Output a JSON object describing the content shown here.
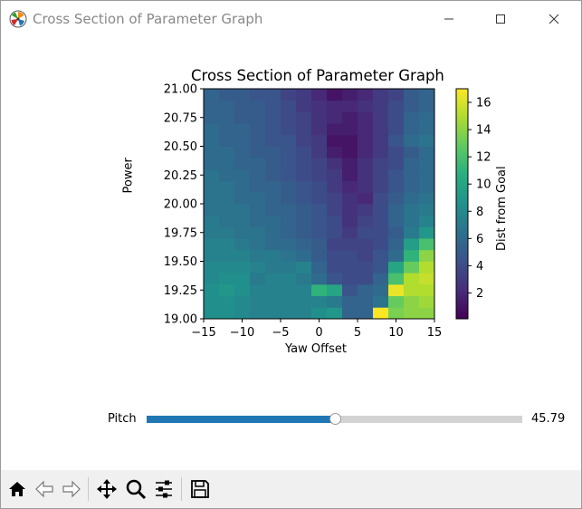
{
  "window": {
    "title": "Cross Section of Parameter Graph",
    "icons": {
      "app": "matplotlib-logo-icon",
      "minimize": "minimize-icon",
      "maximize": "maximize-icon",
      "close": "close-icon"
    }
  },
  "chart_data": {
    "type": "heatmap",
    "title": "Cross Section of Parameter Graph",
    "xlabel": "Yaw Offset",
    "ylabel": "Power",
    "xlim": [
      -15,
      15
    ],
    "ylim": [
      19.0,
      21.0
    ],
    "x_ticks": [
      "−15",
      "−10",
      "−5",
      "0",
      "5",
      "10",
      "15"
    ],
    "y_ticks": [
      "19.00",
      "19.25",
      "19.50",
      "19.75",
      "20.00",
      "20.25",
      "20.50",
      "20.75",
      "21.00"
    ],
    "colormap": "viridis",
    "colorbar": {
      "label": "Dist from Goal",
      "ticks": [
        "2",
        "4",
        "6",
        "8",
        "10",
        "12",
        "14",
        "16"
      ],
      "vmin": 0.1,
      "vmax": 17
    },
    "x_centers": [
      -14,
      -12,
      -10,
      -8,
      -6,
      -4,
      -2,
      0,
      2,
      4,
      6,
      8,
      10,
      12,
      14
    ],
    "y_centers": [
      19.05,
      19.15,
      19.25,
      19.35,
      19.45,
      19.55,
      19.65,
      19.75,
      19.85,
      19.95,
      20.05,
      20.15,
      20.25,
      20.35,
      20.45,
      20.55,
      20.65,
      20.75,
      20.85,
      20.95
    ],
    "grid_note": "z[row][col]; row 0 = Power 19.05 (bottom)",
    "z": [
      [
        8.5,
        8.5,
        8,
        7.5,
        7.5,
        7.5,
        7.5,
        8.5,
        9,
        5.5,
        5.5,
        17,
        13.5,
        14,
        14
      ],
      [
        8.5,
        8.5,
        8,
        7.5,
        7.5,
        7.5,
        7.5,
        7.5,
        7,
        5.5,
        5.5,
        6.5,
        13,
        14,
        14.5
      ],
      [
        8.5,
        9,
        8.5,
        7.5,
        7.5,
        7.5,
        7.5,
        11,
        10,
        4.5,
        5.5,
        6,
        16.5,
        15,
        15
      ],
      [
        8,
        8.5,
        8.5,
        7,
        7.5,
        7.5,
        7,
        6,
        4.5,
        4,
        4,
        5.5,
        12,
        15,
        15.5
      ],
      [
        8,
        8,
        8,
        7.5,
        7,
        7,
        7.5,
        5.5,
        4,
        4,
        4,
        4.5,
        10,
        13,
        15
      ],
      [
        7.5,
        7.5,
        7.5,
        7,
        7,
        6.5,
        6,
        5,
        4,
        4,
        3.5,
        4.5,
        6,
        11,
        14
      ],
      [
        7.5,
        7.5,
        7,
        6.5,
        6,
        6,
        5.5,
        5,
        3.5,
        3.5,
        3.5,
        4,
        5.5,
        9.5,
        12
      ],
      [
        7,
        7,
        6.5,
        6.5,
        6,
        5.5,
        5,
        4.5,
        4,
        3,
        4,
        4,
        5,
        7,
        9
      ],
      [
        7,
        6.5,
        6.5,
        6,
        6,
        5.5,
        5,
        4.5,
        4,
        2.5,
        3.5,
        4,
        5.5,
        6.5,
        7.5
      ],
      [
        6.5,
        6.5,
        6.5,
        6,
        5.5,
        5.5,
        5,
        4.5,
        3.5,
        2.5,
        3,
        4,
        5.5,
        6.5,
        7
      ],
      [
        6.5,
        6.5,
        6,
        6,
        5.5,
        5,
        4.5,
        4,
        3.5,
        2.5,
        2,
        4,
        5,
        6,
        6.5
      ],
      [
        6.5,
        6.5,
        6,
        5.5,
        5.5,
        5,
        4.5,
        4,
        3,
        2,
        2.5,
        3.5,
        4.5,
        5.5,
        6
      ],
      [
        6.5,
        6,
        6,
        5.5,
        5,
        4.5,
        4,
        3.5,
        3,
        1.5,
        2.5,
        3.5,
        4.5,
        5.5,
        6
      ],
      [
        6,
        6,
        5.5,
        5.5,
        5,
        4.5,
        4,
        3.5,
        2.5,
        1.5,
        2.5,
        3.5,
        4,
        5.5,
        6
      ],
      [
        6,
        6,
        5.5,
        5,
        5,
        4.5,
        4,
        3,
        1.5,
        1,
        2,
        3,
        4,
        5,
        6
      ],
      [
        6,
        5.5,
        5.5,
        5,
        4.5,
        4.5,
        3.5,
        3,
        1,
        1,
        2,
        3,
        4.5,
        6,
        6.5
      ],
      [
        6,
        5.5,
        5.5,
        5,
        4.5,
        4,
        3.5,
        2.5,
        1.5,
        1.5,
        2,
        3,
        4,
        5.5,
        6
      ],
      [
        5.5,
        5.5,
        5,
        5,
        4.5,
        4,
        3.5,
        2.5,
        2,
        1.5,
        2,
        3,
        4,
        5.5,
        6
      ],
      [
        5.5,
        5.5,
        5,
        5,
        4.5,
        4,
        3,
        2.5,
        2,
        2,
        2.5,
        3,
        4,
        5,
        5.5
      ],
      [
        5.5,
        5,
        5,
        4.5,
        4.5,
        3.5,
        3,
        2,
        1,
        1.5,
        2,
        3,
        3.5,
        5,
        5.5
      ]
    ]
  },
  "slider": {
    "label": "Pitch",
    "value": "45.79",
    "fraction": 0.5,
    "fill_color": "#1f77b4",
    "track_color": "#d3d3d3"
  },
  "toolbar": {
    "home": "home-icon",
    "back": "back-arrow-icon",
    "forward": "forward-arrow-icon",
    "pan": "pan-move-icon",
    "zoom": "zoom-magnifier-icon",
    "configure": "configure-subplots-icon",
    "save": "save-floppy-icon"
  }
}
